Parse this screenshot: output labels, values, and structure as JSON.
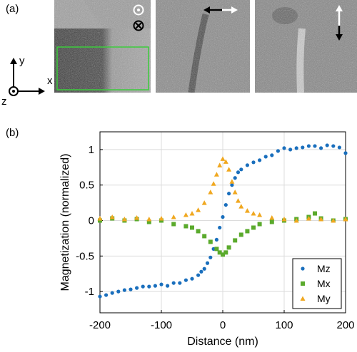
{
  "figure": {
    "panel_a_label": "(a)",
    "panel_b_label": "(b)"
  },
  "panel_a": {
    "coord_axes": {
      "x_label": "x",
      "y_label": "y",
      "z_label": "z"
    },
    "tiles": [
      {
        "component": "Mz",
        "arrow": "out-of-plane (dot and cross symbols)"
      },
      {
        "component": "Mx",
        "arrow": "horizontal double arrow"
      },
      {
        "component": "My",
        "arrow": "vertical double arrow"
      }
    ],
    "colors": {
      "roi_box": "#3ccc3c",
      "arrow_white": "#ffffff",
      "arrow_black": "#000000"
    }
  },
  "chart_data": {
    "type": "scatter",
    "xlabel": "Distance (nm)",
    "ylabel": "Magnetization (normalized)",
    "xlim": [
      -200,
      200
    ],
    "ylim": [
      -1.3,
      1.25
    ],
    "xticks": [
      -200,
      -100,
      0,
      100,
      200
    ],
    "yticks": [
      -1,
      -0.5,
      0,
      0.5,
      1
    ],
    "grid": true,
    "legend_position": "bottom-right",
    "series": [
      {
        "name": "Mz",
        "marker": "circle",
        "color": "#1a6fbd",
        "x": [
          -200,
          -190,
          -180,
          -170,
          -160,
          -150,
          -140,
          -130,
          -120,
          -110,
          -100,
          -90,
          -80,
          -70,
          -60,
          -50,
          -40,
          -35,
          -30,
          -25,
          -20,
          -15,
          -10,
          -5,
          0,
          5,
          10,
          15,
          20,
          25,
          30,
          40,
          50,
          60,
          70,
          80,
          90,
          100,
          110,
          120,
          130,
          140,
          150,
          160,
          170,
          180,
          190,
          200
        ],
        "y": [
          -1.07,
          -1.05,
          -1.02,
          -1.0,
          -0.98,
          -0.97,
          -0.95,
          -0.93,
          -0.93,
          -0.92,
          -0.9,
          -0.92,
          -0.88,
          -0.88,
          -0.84,
          -0.82,
          -0.77,
          -0.72,
          -0.68,
          -0.6,
          -0.52,
          -0.4,
          -0.27,
          -0.1,
          0.05,
          0.22,
          0.38,
          0.5,
          0.6,
          0.68,
          0.72,
          0.78,
          0.82,
          0.85,
          0.9,
          0.92,
          0.98,
          1.02,
          1.0,
          1.02,
          1.03,
          1.05,
          1.05,
          1.02,
          1.06,
          1.05,
          1.03,
          0.95
        ]
      },
      {
        "name": "Mx",
        "marker": "square",
        "color": "#5aaa2c",
        "x": [
          -200,
          -180,
          -160,
          -140,
          -120,
          -100,
          -80,
          -60,
          -50,
          -40,
          -30,
          -20,
          -10,
          -5,
          0,
          5,
          10,
          20,
          30,
          40,
          50,
          60,
          80,
          100,
          120,
          140,
          150,
          160,
          180,
          200
        ],
        "y": [
          0.0,
          0.03,
          0.0,
          0.02,
          -0.02,
          0.0,
          -0.05,
          -0.08,
          -0.1,
          -0.15,
          -0.22,
          -0.3,
          -0.4,
          -0.45,
          -0.48,
          -0.45,
          -0.38,
          -0.28,
          -0.2,
          -0.15,
          -0.1,
          -0.05,
          -0.02,
          0.0,
          0.02,
          0.05,
          0.1,
          0.03,
          0.0,
          0.02
        ]
      },
      {
        "name": "My",
        "marker": "triangle",
        "color": "#f0a820",
        "x": [
          -200,
          -180,
          -160,
          -140,
          -120,
          -100,
          -80,
          -60,
          -50,
          -40,
          -30,
          -20,
          -15,
          -10,
          -5,
          0,
          5,
          10,
          15,
          20,
          25,
          30,
          40,
          50,
          60,
          80,
          100,
          120,
          140,
          160,
          180,
          200
        ],
        "y": [
          0.03,
          0.05,
          0.02,
          0.04,
          0.02,
          0.03,
          0.05,
          0.08,
          0.1,
          0.15,
          0.25,
          0.4,
          0.52,
          0.65,
          0.78,
          0.87,
          0.83,
          0.72,
          0.55,
          0.4,
          0.28,
          0.2,
          0.14,
          0.1,
          0.08,
          0.04,
          0.02,
          0.0,
          0.03,
          0.02,
          0.0,
          0.02
        ]
      }
    ]
  }
}
